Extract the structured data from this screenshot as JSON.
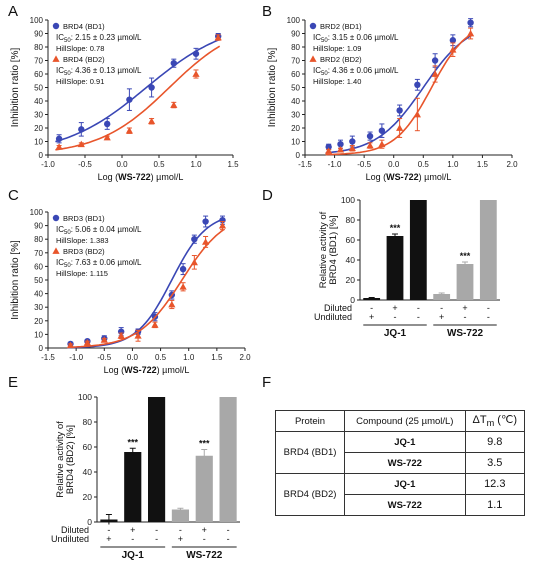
{
  "panel_letters": [
    "A",
    "B",
    "C",
    "D",
    "E",
    "F"
  ],
  "chart_data": [
    {
      "panel": "A",
      "type": "line",
      "xlabel_pre": "Log (",
      "xlabel_bold": "WS-722",
      "xlabel_post": ") µmol/L",
      "ylabel": "Inhibition ratio [%]",
      "xlim": [
        -1.0,
        1.5
      ],
      "ylim": [
        0,
        100
      ],
      "xticks": [
        "-1.0",
        "-0.5",
        "0.0",
        "0.5",
        "1.0",
        "1.5"
      ],
      "yticks": [
        "0",
        "10",
        "20",
        "30",
        "40",
        "50",
        "60",
        "70",
        "80",
        "90",
        "100"
      ],
      "legend_pos": "top-left",
      "series": [
        {
          "name": "BRD4 (BD1)",
          "marker": "circle",
          "color": "#3a47b5",
          "ic50_pre": "IC",
          "ic50_sub": "50",
          "ic50_val": ": 2.15 ± 0.23 µmol/L",
          "hill": "HillSlope: 0.78",
          "x": [
            -0.85,
            -0.55,
            -0.2,
            0.1,
            0.4,
            0.7,
            1.0,
            1.3
          ],
          "y": [
            12,
            19,
            23,
            41,
            50,
            68,
            75,
            88
          ],
          "err": [
            3,
            5,
            4,
            8,
            7,
            3,
            4,
            2
          ],
          "fit_logIC50": 0.33,
          "fit_hill": 0.78
        },
        {
          "name": "BRD4 (BD2)",
          "marker": "triangle",
          "color": "#e8552b",
          "ic50_pre": "IC",
          "ic50_sub": "50",
          "ic50_val": ": 4.36 ± 0.13 µmol/L",
          "hill": "HillSlope: 0.91",
          "x": [
            -0.85,
            -0.55,
            -0.2,
            0.1,
            0.4,
            0.7,
            1.0,
            1.3
          ],
          "y": [
            6,
            8,
            13,
            18,
            25,
            37,
            60,
            87
          ],
          "err": [
            1,
            1,
            1,
            2,
            2,
            2,
            3,
            2
          ],
          "fit_logIC50": 0.64,
          "fit_hill": 0.91
        }
      ]
    },
    {
      "panel": "B",
      "type": "line",
      "xlabel_pre": "Log (",
      "xlabel_bold": "WS-722",
      "xlabel_post": ") µmol/L",
      "ylabel": "Inhibition ratio [%]",
      "xlim": [
        -1.5,
        2.0
      ],
      "ylim": [
        0,
        100
      ],
      "xticks": [
        "-1.5",
        "-1.0",
        "-0.5",
        "0.0",
        "0.5",
        "1.0",
        "1.5",
        "2.0"
      ],
      "yticks": [
        "0",
        "10",
        "20",
        "30",
        "40",
        "50",
        "60",
        "70",
        "80",
        "90",
        "100"
      ],
      "legend_pos": "top-left",
      "series": [
        {
          "name": "BRD2 (BD1)",
          "marker": "circle",
          "color": "#3a47b5",
          "ic50_pre": "IC",
          "ic50_sub": "50",
          "ic50_val": ": 3.15 ± 0.06 µmol/L",
          "hill": "HillSlope: 1.09",
          "x": [
            -1.1,
            -0.9,
            -0.7,
            -0.4,
            -0.2,
            0.1,
            0.4,
            0.7,
            1.0,
            1.3
          ],
          "y": [
            6,
            8,
            10,
            14,
            18,
            33,
            52,
            70,
            85,
            98
          ],
          "err": [
            2,
            3,
            4,
            3,
            5,
            4,
            4,
            5,
            4,
            3
          ],
          "fit_logIC50": 0.5,
          "fit_hill": 1.09
        },
        {
          "name": "BRD2 (BD2)",
          "marker": "triangle",
          "color": "#e8552b",
          "ic50_pre": "IC",
          "ic50_sub": "50",
          "ic50_val": ": 4.36 ± 0.06 µmol/L",
          "hill": "HillSlope: 1.40",
          "x": [
            -1.1,
            -0.9,
            -0.7,
            -0.4,
            -0.2,
            0.1,
            0.4,
            0.7,
            1.0,
            1.3
          ],
          "y": [
            3,
            4,
            5,
            7,
            8,
            20,
            30,
            60,
            78,
            90
          ],
          "err": [
            1,
            1,
            2,
            2,
            3,
            7,
            12,
            6,
            5,
            4
          ],
          "fit_logIC50": 0.64,
          "fit_hill": 1.4
        }
      ]
    },
    {
      "panel": "C",
      "type": "line",
      "xlabel_pre": "Log (",
      "xlabel_bold": "WS-722",
      "xlabel_post": ") µmol/L",
      "ylabel": "Inhibition ratio [%]",
      "xlim": [
        -1.5,
        2.0
      ],
      "ylim": [
        0,
        100
      ],
      "xticks": [
        "-1.5",
        "-1.0",
        "-0.5",
        "0.0",
        "0.5",
        "1.0",
        "1.5",
        "2.0"
      ],
      "yticks": [
        "0",
        "10",
        "20",
        "30",
        "40",
        "50",
        "60",
        "70",
        "80",
        "90",
        "100"
      ],
      "legend_pos": "top-left",
      "series": [
        {
          "name": "BRD3 (BD1)",
          "marker": "circle",
          "color": "#3a47b5",
          "ic50_pre": "IC",
          "ic50_sub": "50",
          "ic50_val": ":  5.06 ± 0.04 µmol/L",
          "hill": "HillSlope: 1.383",
          "x": [
            -1.1,
            -0.8,
            -0.5,
            -0.2,
            0.1,
            0.4,
            0.7,
            0.9,
            1.1,
            1.3,
            1.6
          ],
          "y": [
            3,
            5,
            7,
            12,
            12,
            23,
            39,
            58,
            80,
            93,
            94
          ],
          "err": [
            1,
            1,
            2,
            3,
            2,
            3,
            3,
            4,
            3,
            4,
            3
          ],
          "fit_logIC50": 0.7,
          "fit_hill": 1.383
        },
        {
          "name": "BRD3 (BD2)",
          "marker": "triangle",
          "color": "#e8552b",
          "ic50_pre": "IC",
          "ic50_sub": "50",
          "ic50_val": ":  7.63 ± 0.06 µmol/L",
          "hill": "HillSlope: 1.115",
          "x": [
            -1.1,
            -0.8,
            -0.5,
            -0.2,
            0.1,
            0.4,
            0.7,
            0.9,
            1.1,
            1.3,
            1.6
          ],
          "y": [
            2,
            4,
            6,
            9,
            9,
            17,
            32,
            45,
            63,
            78,
            90
          ],
          "err": [
            1,
            1,
            1,
            2,
            4,
            2,
            3,
            3,
            5,
            4,
            3
          ],
          "fit_logIC50": 0.88,
          "fit_hill": 1.115
        }
      ]
    },
    {
      "panel": "D",
      "type": "bar",
      "ylabel_line1": "Relative activity of",
      "ylabel_line2": "BRD4 (BD1) [%]",
      "ylim": [
        0,
        100
      ],
      "yticks": [
        "0",
        "20",
        "40",
        "60",
        "80",
        "100"
      ],
      "values": [
        2,
        64,
        100,
        6,
        36,
        100
      ],
      "err": [
        0.5,
        2,
        0,
        1,
        2,
        0
      ],
      "colors": [
        "#111111",
        "#111111",
        "#111111",
        "#a8a8a8",
        "#a8a8a8",
        "#a8a8a8"
      ],
      "significance": [
        "",
        "***",
        "",
        "",
        "***",
        ""
      ],
      "row_labels": [
        "Diluted",
        "Undiluted"
      ],
      "diluted": [
        "-",
        "+",
        "-",
        "-",
        "+",
        "-"
      ],
      "undiluted": [
        "+",
        "-",
        "-",
        "+",
        "-",
        "-"
      ],
      "groups": [
        "JQ-1",
        "WS-722"
      ]
    },
    {
      "panel": "E",
      "type": "bar",
      "ylabel_line1": "Relative activity of",
      "ylabel_line2": "BRD4 (BD2) [%]",
      "ylim": [
        0,
        100
      ],
      "yticks": [
        "0",
        "20",
        "40",
        "60",
        "80",
        "100"
      ],
      "values": [
        2,
        56,
        100,
        10,
        53,
        100
      ],
      "err": [
        4,
        3,
        0,
        1,
        5,
        0
      ],
      "colors": [
        "#111111",
        "#111111",
        "#111111",
        "#a8a8a8",
        "#a8a8a8",
        "#a8a8a8"
      ],
      "significance": [
        "",
        "***",
        "",
        "",
        "***",
        ""
      ],
      "row_labels": [
        "Diluted",
        "Undiluted"
      ],
      "diluted": [
        "-",
        "+",
        "-",
        "-",
        "+",
        "-"
      ],
      "undiluted": [
        "+",
        "-",
        "-",
        "+",
        "-",
        "-"
      ],
      "groups": [
        "JQ-1",
        "WS-722"
      ]
    }
  ],
  "table": {
    "header_protein": "Protein",
    "header_compound": "Compound  (25 µmol/L)",
    "header_dtm_pre": "ΔT",
    "header_dtm_sub": "m",
    "header_dtm_post": " (℃)",
    "rows": [
      {
        "protein": "BRD4 (BD1)",
        "compound": "JQ-1",
        "dtm": "9.8"
      },
      {
        "protein": "",
        "compound": "WS-722",
        "dtm": "3.5"
      },
      {
        "protein": "BRD4 (BD2)",
        "compound": "JQ-1",
        "dtm": "12.3"
      },
      {
        "protein": "",
        "compound": "WS-722",
        "dtm": "1.1"
      }
    ]
  }
}
